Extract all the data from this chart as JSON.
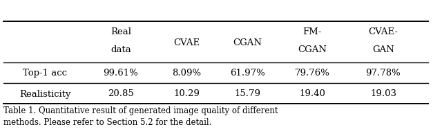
{
  "col_headers": [
    "",
    "Real\ndata",
    "CVAE",
    "CGAN",
    "FM-\nCGAN",
    "CVAE-\nGAN"
  ],
  "rows": [
    [
      "Top-1 acc",
      "99.61%",
      "8.09%",
      "61.97%",
      "79.76%",
      "97.78%"
    ],
    [
      "Realisticity",
      "20.85",
      "10.29",
      "15.79",
      "19.40",
      "19.03"
    ]
  ],
  "caption_line1": "Table 1. Quantitative result of generated image quality of different",
  "caption_line2": "methods. Please refer to Section 5.2 for the detail.",
  "background_color": "#ffffff",
  "font_size": 9.5,
  "caption_font_size": 8.5,
  "fig_width": 6.4,
  "fig_height": 2.05,
  "dpi": 100
}
